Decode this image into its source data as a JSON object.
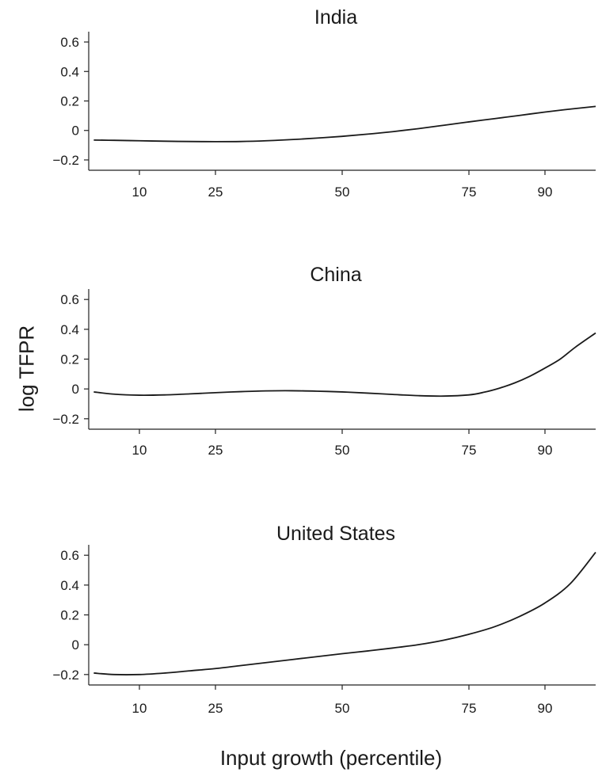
{
  "figure": {
    "ylabel": "log TFPR",
    "xlabel": "Input growth (percentile)"
  },
  "chart_data": [
    {
      "type": "line",
      "title": "India",
      "x_ticks": [
        10,
        25,
        50,
        75,
        90
      ],
      "y_ticks": [
        -0.2,
        0,
        0.2,
        0.4,
        0.6
      ],
      "y_tick_labels": [
        "−0.2",
        "0",
        "0.2",
        "0.4",
        "0.6"
      ],
      "xlim": [
        0,
        100
      ],
      "ylim": [
        -0.27,
        0.67
      ],
      "grid": false,
      "x": [
        1,
        5,
        10,
        15,
        20,
        25,
        30,
        35,
        40,
        45,
        50,
        55,
        60,
        65,
        70,
        75,
        80,
        85,
        90,
        95,
        100
      ],
      "values": [
        -0.065,
        -0.067,
        -0.07,
        -0.073,
        -0.075,
        -0.076,
        -0.075,
        -0.07,
        -0.062,
        -0.052,
        -0.04,
        -0.025,
        -0.008,
        0.012,
        0.035,
        0.058,
        0.08,
        0.102,
        0.125,
        0.145,
        0.163
      ]
    },
    {
      "type": "line",
      "title": "China",
      "x_ticks": [
        10,
        25,
        50,
        75,
        90
      ],
      "y_ticks": [
        -0.2,
        0,
        0.2,
        0.4,
        0.6
      ],
      "y_tick_labels": [
        "−0.2",
        "0",
        "0.2",
        "0.4",
        "0.6"
      ],
      "xlim": [
        0,
        100
      ],
      "ylim": [
        -0.27,
        0.67
      ],
      "grid": false,
      "x": [
        1,
        5,
        10,
        15,
        20,
        25,
        30,
        35,
        40,
        45,
        50,
        55,
        60,
        65,
        70,
        75,
        78,
        81,
        84,
        87,
        90,
        93,
        96,
        100
      ],
      "values": [
        -0.02,
        -0.035,
        -0.042,
        -0.04,
        -0.033,
        -0.025,
        -0.018,
        -0.013,
        -0.012,
        -0.015,
        -0.02,
        -0.028,
        -0.037,
        -0.045,
        -0.048,
        -0.04,
        -0.022,
        0.005,
        0.04,
        0.085,
        0.14,
        0.2,
        0.28,
        0.375
      ]
    },
    {
      "type": "line",
      "title": "United States",
      "x_ticks": [
        10,
        25,
        50,
        75,
        90
      ],
      "y_ticks": [
        -0.2,
        0,
        0.2,
        0.4,
        0.6
      ],
      "y_tick_labels": [
        "−0.2",
        "0",
        "0.2",
        "0.4",
        "0.6"
      ],
      "xlim": [
        0,
        100
      ],
      "ylim": [
        -0.27,
        0.67
      ],
      "grid": false,
      "x": [
        1,
        5,
        10,
        15,
        20,
        25,
        30,
        35,
        40,
        45,
        50,
        55,
        60,
        65,
        70,
        75,
        80,
        85,
        90,
        95,
        100
      ],
      "values": [
        -0.19,
        -0.2,
        -0.2,
        -0.19,
        -0.175,
        -0.16,
        -0.14,
        -0.12,
        -0.1,
        -0.08,
        -0.06,
        -0.042,
        -0.022,
        0.0,
        0.03,
        0.07,
        0.12,
        0.19,
        0.28,
        0.41,
        0.62
      ]
    }
  ]
}
